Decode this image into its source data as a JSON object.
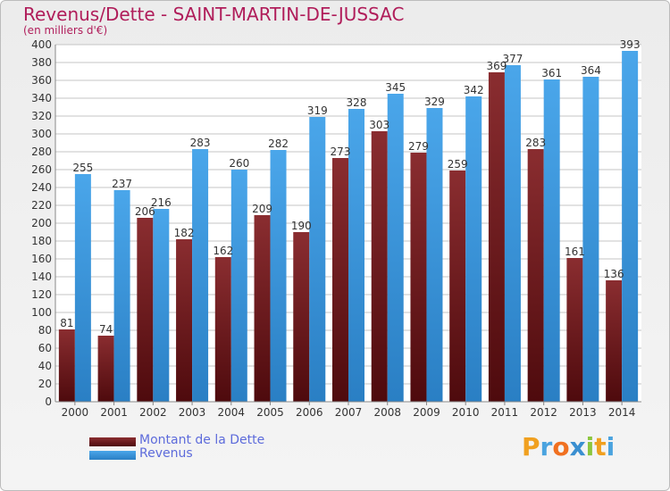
{
  "title": "Revenus/Dette - SAINT-MARTIN-DE-JUSSAC",
  "subtitle": "(en milliers d'€)",
  "brand": {
    "letters": [
      "P",
      "r",
      "o",
      "x",
      "i",
      "t",
      "i"
    ],
    "colors": [
      "#f0a020",
      "#4aa3df",
      "#f07020",
      "#3a8fd0",
      "#8cc63f",
      "#f0a020",
      "#4aa3df"
    ]
  },
  "colors": {
    "dette": "#6a1a1d",
    "revenus": "#3d95dc",
    "grid": "#c4c4c4"
  },
  "chart_data": {
    "type": "bar",
    "categories": [
      "2000",
      "2001",
      "2002",
      "2003",
      "2004",
      "2005",
      "2006",
      "2007",
      "2008",
      "2009",
      "2010",
      "2011",
      "2012",
      "2013",
      "2014"
    ],
    "series": [
      {
        "name": "Montant de la Dette",
        "values": [
          81,
          74,
          206,
          182,
          162,
          209,
          190,
          273,
          303,
          279,
          259,
          369,
          283,
          161,
          136
        ]
      },
      {
        "name": "Revenus",
        "values": [
          255,
          237,
          216,
          283,
          260,
          282,
          319,
          328,
          345,
          329,
          342,
          377,
          361,
          364,
          393
        ]
      }
    ],
    "ylim": [
      0,
      400
    ],
    "ytick_step": 20,
    "grid": true,
    "legend": "bottom-left"
  }
}
